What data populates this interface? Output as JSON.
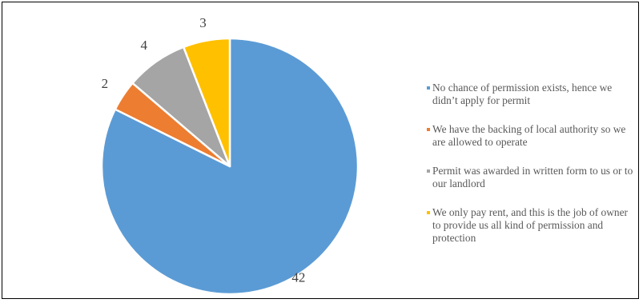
{
  "chart_data": {
    "type": "pie",
    "categories": [
      "No chance of permission exists, hence we didn’t apply for permit",
      "We have the backing of local authority so we are allowed to operate",
      "Permit was awarded in written form to us or to our landlord",
      "We only pay rent, and this is the job of owner to provide us all kind of permission and protection"
    ],
    "values": [
      42,
      2,
      4,
      3
    ],
    "data_labels": [
      "42",
      "2",
      "4",
      "3"
    ],
    "colors": [
      "#5b9bd5",
      "#ed7d31",
      "#a5a5a5",
      "#ffc000"
    ],
    "start_angle_deg": 0,
    "direction": "clockwise",
    "legend_position": "right",
    "title": ""
  }
}
